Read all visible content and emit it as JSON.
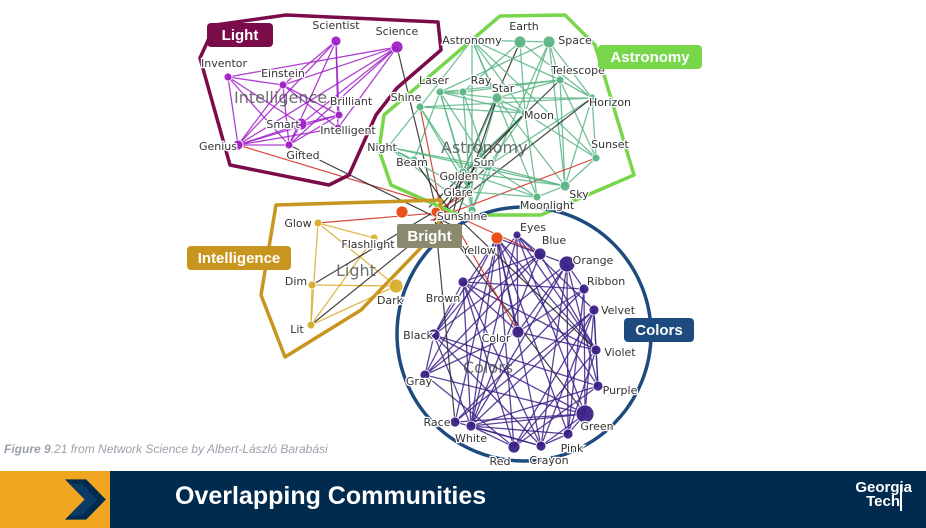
{
  "slide": {
    "caption_figure": "Figure 9",
    "caption_rest": ".21 from Network Science by Albert-László Barabási",
    "title": "Overlapping Communities",
    "logo_line1": "Georgia",
    "logo_line2": "Tech"
  },
  "diagram": {
    "center_label": "Bright",
    "communities": [
      {
        "key": "light",
        "tag": "Light",
        "watermark": "Intelligence",
        "color": "#7a0c4a",
        "node_color": "#a020c8"
      },
      {
        "key": "astronomy",
        "tag": "Astronomy",
        "watermark": "Astronomy",
        "color": "#78d64b",
        "node_color": "#5cb685"
      },
      {
        "key": "intelligence",
        "tag": "Intelligence",
        "watermark": "Light",
        "color": "#c8961e",
        "node_color": "#d7ae2c"
      },
      {
        "key": "colors",
        "tag": "Colors",
        "watermark": "Colors",
        "color": "#1e4b7e",
        "node_color": "#3c2287"
      }
    ],
    "nodes": {
      "light": [
        "Scientist",
        "Science",
        "Inventor",
        "Einstein",
        "Brilliant",
        "Smart",
        "Intelligent",
        "Genius",
        "Gifted"
      ],
      "astronomy": [
        "Earth",
        "Space",
        "Astronomy",
        "Telescope",
        "Laser",
        "Ray",
        "Star",
        "Horizon",
        "Shine",
        "Moon",
        "Sun",
        "Sunset",
        "Night",
        "Beam",
        "Golden",
        "Glare",
        "Sunshine",
        "Moonlight",
        "Sky"
      ],
      "intelligence": [
        "Glow",
        "Flashlight",
        "Dim",
        "Dark",
        "Lit"
      ],
      "colors": [
        "Eyes",
        "Blue",
        "Yellow",
        "Orange",
        "Green",
        "Ribbon",
        "Brown",
        "Velvet",
        "Black",
        "Color",
        "Violet",
        "Gray",
        "Purple",
        "Race",
        "White",
        "Red",
        "Pink",
        "Crayon"
      ]
    }
  }
}
